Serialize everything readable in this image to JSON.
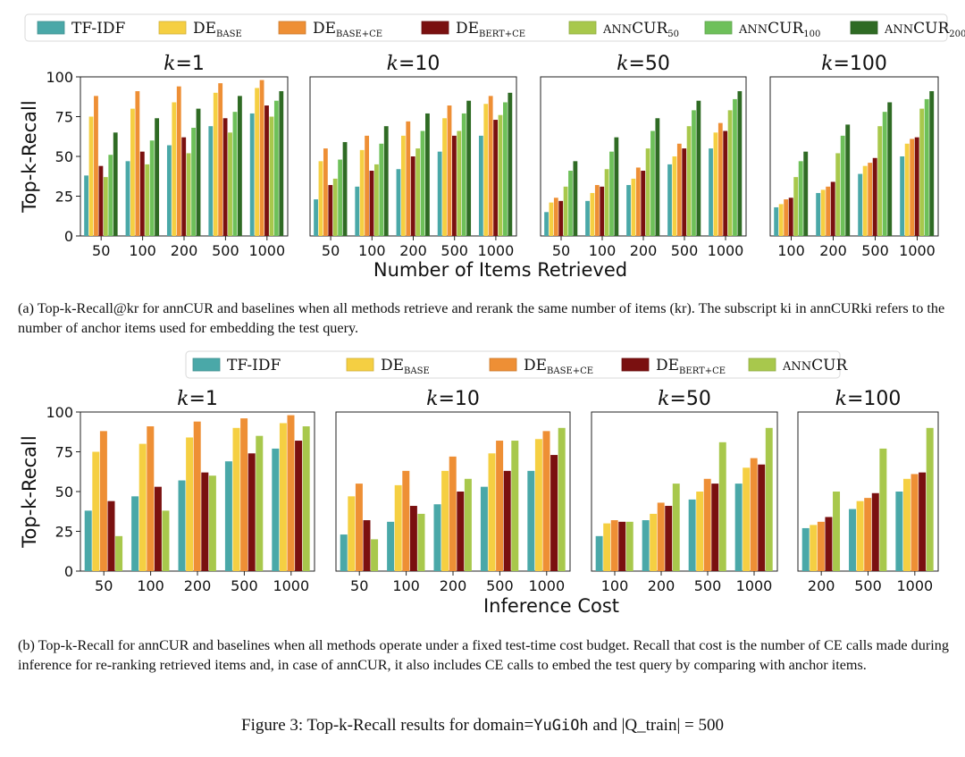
{
  "colors": {
    "tfidf": "#4aa8a8",
    "de_base": "#f5cf42",
    "de_base_ce": "#ee8f35",
    "de_bert_ce": "#7a1010",
    "anncur50": "#a8c84c",
    "anncur100": "#6ec05a",
    "anncur200": "#2f6b24",
    "anncur": "#a8c84c"
  },
  "chart_data": [
    {
      "type": "bar",
      "panel": "a",
      "xlabel": "Number of Items Retrieved",
      "ylabel": "Top-k-Recall",
      "ylim": [
        0,
        100
      ],
      "yticks": [
        0,
        25,
        50,
        75,
        100
      ],
      "legend": [
        {
          "key": "tfidf",
          "label": "TF-IDF"
        },
        {
          "key": "de_base",
          "label": "DE",
          "sub": "BASE"
        },
        {
          "key": "de_base_ce",
          "label": "DE",
          "sub": "BASE+CE"
        },
        {
          "key": "de_bert_ce",
          "label": "DE",
          "sub": "BERT+CE"
        },
        {
          "key": "anncur50",
          "label": "annCUR",
          "sub": "50"
        },
        {
          "key": "anncur100",
          "label": "annCUR",
          "sub": "100"
        },
        {
          "key": "anncur200",
          "label": "annCUR",
          "sub": "200"
        }
      ],
      "subplots": [
        {
          "title": "k=1",
          "categories": [
            "50",
            "100",
            "200",
            "500",
            "1000"
          ],
          "series": [
            {
              "key": "tfidf",
              "values": [
                38,
                47,
                57,
                69,
                77
              ]
            },
            {
              "key": "de_base",
              "values": [
                75,
                80,
                84,
                90,
                93
              ]
            },
            {
              "key": "de_base_ce",
              "values": [
                88,
                91,
                94,
                96,
                98
              ]
            },
            {
              "key": "de_bert_ce",
              "values": [
                44,
                53,
                62,
                74,
                82
              ]
            },
            {
              "key": "anncur50",
              "values": [
                37,
                45,
                52,
                65,
                75
              ]
            },
            {
              "key": "anncur100",
              "values": [
                51,
                60,
                68,
                78,
                85
              ]
            },
            {
              "key": "anncur200",
              "values": [
                65,
                74,
                80,
                88,
                91
              ]
            }
          ]
        },
        {
          "title": "k=10",
          "categories": [
            "50",
            "100",
            "200",
            "500",
            "1000"
          ],
          "series": [
            {
              "key": "tfidf",
              "values": [
                23,
                31,
                42,
                53,
                63
              ]
            },
            {
              "key": "de_base",
              "values": [
                47,
                54,
                63,
                74,
                83
              ]
            },
            {
              "key": "de_base_ce",
              "values": [
                55,
                63,
                72,
                82,
                88
              ]
            },
            {
              "key": "de_bert_ce",
              "values": [
                32,
                41,
                50,
                63,
                73
              ]
            },
            {
              "key": "anncur50",
              "values": [
                36,
                45,
                55,
                66,
                76
              ]
            },
            {
              "key": "anncur100",
              "values": [
                48,
                58,
                66,
                77,
                84
              ]
            },
            {
              "key": "anncur200",
              "values": [
                59,
                69,
                77,
                85,
                90
              ]
            }
          ]
        },
        {
          "title": "k=50",
          "categories": [
            "50",
            "100",
            "200",
            "500",
            "1000"
          ],
          "series": [
            {
              "key": "tfidf",
              "values": [
                15,
                22,
                32,
                45,
                55
              ]
            },
            {
              "key": "de_base",
              "values": [
                21,
                27,
                36,
                50,
                65
              ]
            },
            {
              "key": "de_base_ce",
              "values": [
                24,
                32,
                43,
                58,
                71
              ]
            },
            {
              "key": "de_bert_ce",
              "values": [
                22,
                31,
                41,
                55,
                66
              ]
            },
            {
              "key": "anncur50",
              "values": [
                31,
                42,
                55,
                69,
                79
              ]
            },
            {
              "key": "anncur100",
              "values": [
                41,
                53,
                66,
                79,
                86
              ]
            },
            {
              "key": "anncur200",
              "values": [
                47,
                62,
                74,
                85,
                91
              ]
            }
          ]
        },
        {
          "title": "k=100",
          "categories": [
            "100",
            "200",
            "500",
            "1000"
          ],
          "series": [
            {
              "key": "tfidf",
              "values": [
                18,
                27,
                39,
                50
              ]
            },
            {
              "key": "de_base",
              "values": [
                20,
                29,
                44,
                58
              ]
            },
            {
              "key": "de_base_ce",
              "values": [
                23,
                31,
                46,
                61
              ]
            },
            {
              "key": "de_bert_ce",
              "values": [
                24,
                34,
                49,
                62
              ]
            },
            {
              "key": "anncur50",
              "values": [
                37,
                52,
                69,
                80
              ]
            },
            {
              "key": "anncur100",
              "values": [
                47,
                63,
                78,
                86
              ]
            },
            {
              "key": "anncur200",
              "values": [
                53,
                70,
                84,
                91
              ]
            }
          ]
        }
      ]
    },
    {
      "type": "bar",
      "panel": "b",
      "xlabel": "Inference Cost",
      "ylabel": "Top-k-Recall",
      "ylim": [
        0,
        100
      ],
      "yticks": [
        0,
        25,
        50,
        75,
        100
      ],
      "legend": [
        {
          "key": "tfidf",
          "label": "TF-IDF"
        },
        {
          "key": "de_base",
          "label": "DE",
          "sub": "BASE"
        },
        {
          "key": "de_base_ce",
          "label": "DE",
          "sub": "BASE+CE"
        },
        {
          "key": "de_bert_ce",
          "label": "DE",
          "sub": "BERT+CE"
        },
        {
          "key": "anncur",
          "label": "annCUR"
        }
      ],
      "subplots": [
        {
          "title": "k=1",
          "categories": [
            "50",
            "100",
            "200",
            "500",
            "1000"
          ],
          "series": [
            {
              "key": "tfidf",
              "values": [
                38,
                47,
                57,
                69,
                77
              ]
            },
            {
              "key": "de_base",
              "values": [
                75,
                80,
                84,
                90,
                93
              ]
            },
            {
              "key": "de_base_ce",
              "values": [
                88,
                91,
                94,
                96,
                98
              ]
            },
            {
              "key": "de_bert_ce",
              "values": [
                44,
                53,
                62,
                74,
                82
              ]
            },
            {
              "key": "anncur",
              "values": [
                22,
                38,
                60,
                85,
                91
              ]
            }
          ]
        },
        {
          "title": "k=10",
          "categories": [
            "50",
            "100",
            "200",
            "500",
            "1000"
          ],
          "series": [
            {
              "key": "tfidf",
              "values": [
                23,
                31,
                42,
                53,
                63
              ]
            },
            {
              "key": "de_base",
              "values": [
                47,
                54,
                63,
                74,
                83
              ]
            },
            {
              "key": "de_base_ce",
              "values": [
                55,
                63,
                72,
                82,
                88
              ]
            },
            {
              "key": "de_bert_ce",
              "values": [
                32,
                41,
                50,
                63,
                73
              ]
            },
            {
              "key": "anncur",
              "values": [
                20,
                36,
                58,
                82,
                90
              ]
            }
          ]
        },
        {
          "title": "k=50",
          "categories": [
            "100",
            "200",
            "500",
            "1000"
          ],
          "series": [
            {
              "key": "tfidf",
              "values": [
                22,
                32,
                45,
                55
              ]
            },
            {
              "key": "de_base",
              "values": [
                30,
                36,
                50,
                65
              ]
            },
            {
              "key": "de_base_ce",
              "values": [
                32,
                43,
                58,
                71
              ]
            },
            {
              "key": "de_bert_ce",
              "values": [
                31,
                41,
                55,
                67
              ]
            },
            {
              "key": "anncur",
              "values": [
                31,
                55,
                81,
                90
              ]
            }
          ]
        },
        {
          "title": "k=100",
          "categories": [
            "200",
            "500",
            "1000"
          ],
          "series": [
            {
              "key": "tfidf",
              "values": [
                27,
                39,
                50
              ]
            },
            {
              "key": "de_base",
              "values": [
                29,
                44,
                58
              ]
            },
            {
              "key": "de_base_ce",
              "values": [
                31,
                46,
                61
              ]
            },
            {
              "key": "de_bert_ce",
              "values": [
                34,
                49,
                62
              ]
            },
            {
              "key": "anncur",
              "values": [
                50,
                77,
                90
              ]
            }
          ]
        }
      ]
    }
  ],
  "captions": {
    "a": "(a) Top-k-Recall@kr for annCUR and baselines when all methods retrieve and rerank the same number of items (kr). The subscript ki in annCURki refers to the number of anchor items used for embedding the test query.",
    "b": "(b) Top-k-Recall for annCUR and baselines when all methods operate under a fixed test-time cost budget. Recall that cost is the number of CE calls made during inference for re-ranking retrieved items and, in case of annCUR, it also includes CE calls to embed the test query by comparing with anchor items.",
    "figure_prefix": "Figure 3: Top-k-Recall results for domain=",
    "figure_domain": "YuGiOh",
    "figure_suffix": " and |Q_train| = 500"
  }
}
